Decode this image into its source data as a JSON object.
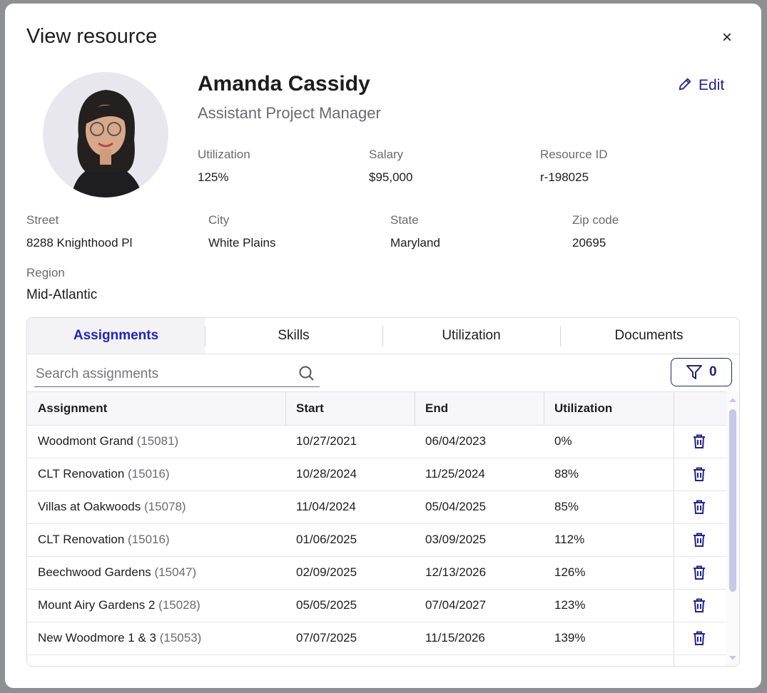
{
  "header": {
    "title": "View resource",
    "close": "×"
  },
  "profile": {
    "name": "Amanda Cassidy",
    "role": "Assistant Project Manager",
    "edit": "Edit",
    "fields": [
      {
        "label": "Utilization",
        "value": "125%"
      },
      {
        "label": "Salary",
        "value": "$95,000"
      },
      {
        "label": "Resource ID",
        "value": "r-198025"
      }
    ]
  },
  "address": [
    {
      "label": "Street",
      "value": "8288 Knighthood Pl"
    },
    {
      "label": "City",
      "value": "White Plains"
    },
    {
      "label": "State",
      "value": "Maryland"
    },
    {
      "label": "Zip code",
      "value": "20695"
    }
  ],
  "region": {
    "label": "Region",
    "value": "Mid-Atlantic"
  },
  "tabs": [
    "Assignments",
    "Skills",
    "Utilization",
    "Documents"
  ],
  "search": {
    "placeholder": "Search assignments"
  },
  "filter": {
    "count": "0"
  },
  "table": {
    "columns": [
      "Assignment",
      "Start",
      "End",
      "Utilization"
    ],
    "rows": [
      [
        "Woodmont Grand",
        "(15081)",
        "10/27/2021",
        "06/04/2023",
        "0%"
      ],
      [
        "CLT Renovation",
        "(15016)",
        "10/28/2024",
        "11/25/2024",
        "88%"
      ],
      [
        "Villas at Oakwoods",
        "(15078)",
        "11/04/2024",
        "05/04/2025",
        "85%"
      ],
      [
        "CLT Renovation",
        "(15016)",
        "01/06/2025",
        "03/09/2025",
        "112%"
      ],
      [
        "Beechwood Gardens",
        "(15047)",
        "02/09/2025",
        "12/13/2026",
        "126%"
      ],
      [
        "Mount Airy Gardens 2",
        "(15028)",
        "05/05/2025",
        "07/04/2027",
        "123%"
      ],
      [
        "New Woodmore 1 & 3",
        "(15053)",
        "07/07/2025",
        "11/15/2026",
        "139%"
      ]
    ]
  }
}
